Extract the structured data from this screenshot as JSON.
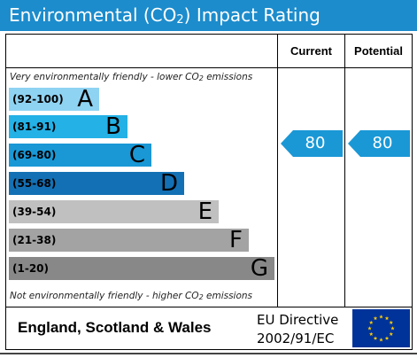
{
  "title": {
    "main": "Environmental (CO",
    "sub": "2",
    "rest": ") Impact Rating"
  },
  "columns": {
    "current": "Current",
    "potential": "Potential"
  },
  "notes": {
    "top": {
      "pre": "Very environmentally friendly - lower CO",
      "sub": "2",
      "post": " emissions"
    },
    "bottom": {
      "pre": "Not environmentally friendly - higher CO",
      "sub": "2",
      "post": " emissions"
    }
  },
  "bands": [
    {
      "range": "(92-100)",
      "letter": "A",
      "color": "#8fd3f2"
    },
    {
      "range": "(81-91)",
      "letter": "B",
      "color": "#24b1e6"
    },
    {
      "range": "(69-80)",
      "letter": "C",
      "color": "#1a98d6"
    },
    {
      "range": "(55-68)",
      "letter": "D",
      "color": "#1470b4"
    },
    {
      "range": "(39-54)",
      "letter": "E",
      "color": "#c0c0c0"
    },
    {
      "range": "(21-38)",
      "letter": "F",
      "color": "#a3a3a3"
    },
    {
      "range": "(1-20)",
      "letter": "G",
      "color": "#888888"
    }
  ],
  "ratings": {
    "current": {
      "value": "80",
      "color": "#1a98d6"
    },
    "potential": {
      "value": "80",
      "color": "#1a98d6"
    }
  },
  "footer": {
    "region": "England, Scotland & Wales",
    "directive_line1": "EU Directive",
    "directive_line2": "2002/91/EC",
    "flag_icon": "eu-flag-icon",
    "flag_colors": {
      "field": "#003399",
      "stars": "#ffcc00"
    }
  },
  "colors": {
    "title_bar": "#1c8ccc"
  }
}
